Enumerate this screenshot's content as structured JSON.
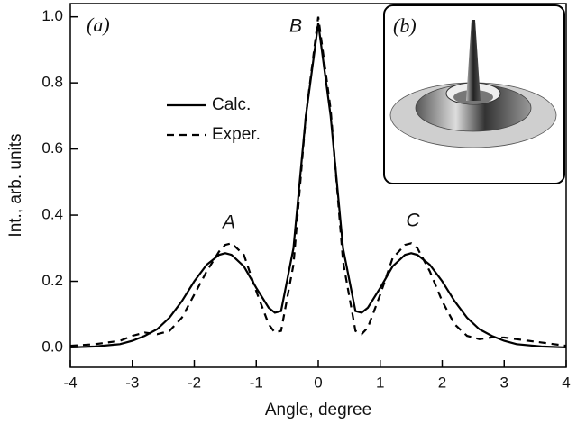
{
  "chart_data": {
    "type": "line",
    "x_label": "Angle, degree",
    "y_label": "Int., arb. units",
    "panel_label": "(a)",
    "inset_label": "(b)",
    "peak_labels": [
      "A",
      "B",
      "C"
    ],
    "xlim": [
      -4,
      4
    ],
    "ylim": [
      -0.06,
      1.04
    ],
    "xticks": [
      -4,
      -3,
      -2,
      -1,
      0,
      1,
      2,
      3,
      4
    ],
    "yticks": [
      {
        "value": 0,
        "label": "0.0"
      },
      0.2,
      0.4,
      0.6,
      0.8,
      {
        "value": 1,
        "label": "1.0"
      }
    ],
    "x": [
      -4,
      -3.6,
      -3.2,
      -3.0,
      -2.8,
      -2.6,
      -2.4,
      -2.2,
      -2.0,
      -1.8,
      -1.6,
      -1.5,
      -1.4,
      -1.2,
      -1.0,
      -0.8,
      -0.7,
      -0.6,
      -0.4,
      -0.2,
      0,
      0.2,
      0.4,
      0.6,
      0.7,
      0.8,
      1.0,
      1.2,
      1.4,
      1.5,
      1.6,
      1.8,
      2.0,
      2.2,
      2.4,
      2.6,
      2.8,
      3.0,
      3.2,
      3.6,
      4
    ],
    "series": [
      {
        "name": "Calc.",
        "color": "#000000",
        "dash": "none",
        "values": [
          0.0,
          0.003,
          0.01,
          0.02,
          0.035,
          0.055,
          0.09,
          0.14,
          0.2,
          0.25,
          0.28,
          0.285,
          0.28,
          0.245,
          0.18,
          0.12,
          0.105,
          0.11,
          0.3,
          0.7,
          0.98,
          0.7,
          0.3,
          0.11,
          0.105,
          0.12,
          0.18,
          0.245,
          0.28,
          0.285,
          0.28,
          0.25,
          0.2,
          0.14,
          0.09,
          0.055,
          0.035,
          0.02,
          0.01,
          0.003,
          0.0
        ]
      },
      {
        "name": "Exper.",
        "color": "#000000",
        "dash": "8 6",
        "values": [
          0.005,
          0.01,
          0.02,
          0.035,
          0.045,
          0.04,
          0.05,
          0.09,
          0.16,
          0.23,
          0.29,
          0.31,
          0.315,
          0.28,
          0.17,
          0.07,
          0.045,
          0.05,
          0.25,
          0.7,
          1.0,
          0.72,
          0.26,
          0.05,
          0.04,
          0.06,
          0.16,
          0.27,
          0.31,
          0.315,
          0.3,
          0.23,
          0.14,
          0.07,
          0.035,
          0.025,
          0.03,
          0.03,
          0.025,
          0.015,
          0.005
        ]
      }
    ]
  }
}
